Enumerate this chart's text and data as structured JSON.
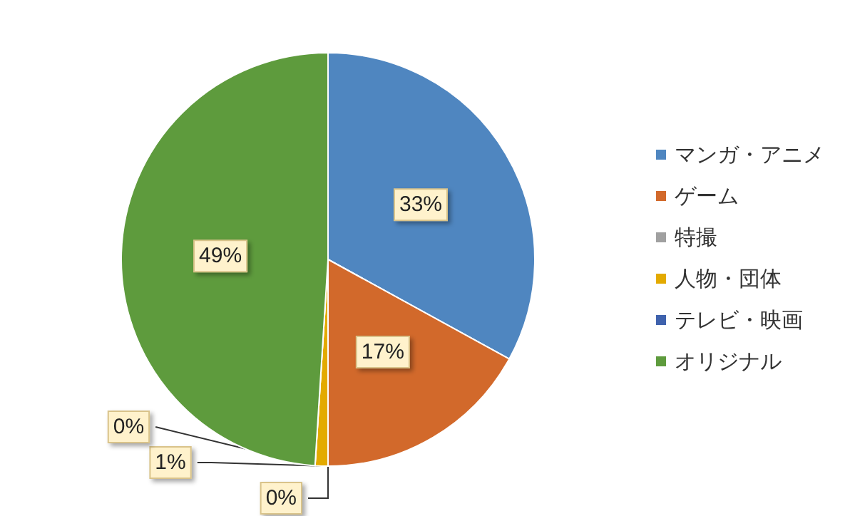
{
  "chart_data": {
    "type": "pie",
    "categories": [
      "マンガ・アニメ",
      "ゲーム",
      "特撮",
      "人物・団体",
      "テレビ・映画",
      "オリジナル"
    ],
    "values": [
      33,
      17,
      0,
      1,
      0,
      49
    ],
    "colors": [
      "#4f86c0",
      "#d2692b",
      "#a0a0a0",
      "#e3aa00",
      "#3f62ad",
      "#5e9b3d"
    ],
    "value_labels": [
      "33%",
      "17%",
      "0%",
      "1%",
      "0%",
      "49%"
    ],
    "legend": "right"
  }
}
